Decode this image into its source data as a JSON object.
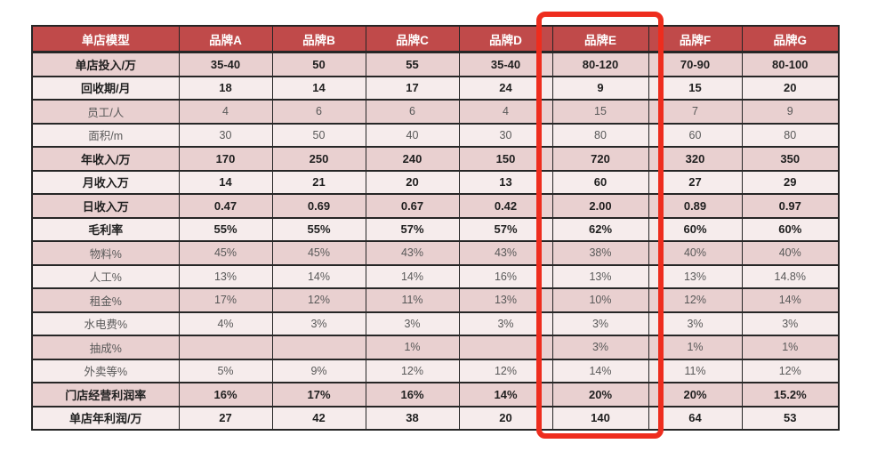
{
  "chart_data": {
    "type": "table",
    "title": "",
    "columns": [
      "单店模型",
      "品牌A",
      "品牌B",
      "品牌C",
      "品牌D",
      "品牌E",
      "品牌F",
      "品牌G"
    ],
    "rows": [
      {
        "label": "单店投入/万",
        "values": [
          "35-40",
          "50",
          "55",
          "35-40",
          "80-120",
          "70-90",
          "80-100"
        ],
        "strong": true
      },
      {
        "label": "回收期/月",
        "values": [
          "18",
          "14",
          "17",
          "24",
          "9",
          "15",
          "20"
        ],
        "strong": true
      },
      {
        "label": "员工/人",
        "values": [
          "4",
          "6",
          "6",
          "4",
          "15",
          "7",
          "9"
        ],
        "strong": false
      },
      {
        "label": "面积/m",
        "values": [
          "30",
          "50",
          "40",
          "30",
          "80",
          "60",
          "80"
        ],
        "strong": false
      },
      {
        "label": "年收入/万",
        "values": [
          "170",
          "250",
          "240",
          "150",
          "720",
          "320",
          "350"
        ],
        "strong": true
      },
      {
        "label": "月收入万",
        "values": [
          "14",
          "21",
          "20",
          "13",
          "60",
          "27",
          "29"
        ],
        "strong": true
      },
      {
        "label": "日收入万",
        "values": [
          "0.47",
          "0.69",
          "0.67",
          "0.42",
          "2.00",
          "0.89",
          "0.97"
        ],
        "strong": true
      },
      {
        "label": "毛利率",
        "values": [
          "55%",
          "55%",
          "57%",
          "57%",
          "62%",
          "60%",
          "60%"
        ],
        "strong": true
      },
      {
        "label": "物料%",
        "values": [
          "45%",
          "45%",
          "43%",
          "43%",
          "38%",
          "40%",
          "40%"
        ],
        "strong": false
      },
      {
        "label": "人工%",
        "values": [
          "13%",
          "14%",
          "14%",
          "16%",
          "13%",
          "13%",
          "14.8%"
        ],
        "strong": false
      },
      {
        "label": "租金%",
        "values": [
          "17%",
          "12%",
          "11%",
          "13%",
          "10%",
          "12%",
          "14%"
        ],
        "strong": false
      },
      {
        "label": "水电费%",
        "values": [
          "4%",
          "3%",
          "3%",
          "3%",
          "3%",
          "3%",
          "3%"
        ],
        "strong": false
      },
      {
        "label": "抽成%",
        "values": [
          "",
          "",
          "1%",
          "",
          "3%",
          "1%",
          "1%"
        ],
        "strong": false
      },
      {
        "label": "外卖等%",
        "values": [
          "5%",
          "9%",
          "12%",
          "12%",
          "14%",
          "11%",
          "12%"
        ],
        "strong": false
      },
      {
        "label": "门店经营利润率",
        "values": [
          "16%",
          "17%",
          "16%",
          "14%",
          "20%",
          "20%",
          "15.2%"
        ],
        "strong": true
      },
      {
        "label": "单店年利润/万",
        "values": [
          "27",
          "42",
          "38",
          "20",
          "140",
          "64",
          "53"
        ],
        "strong": true
      }
    ],
    "highlighted_column": "品牌E",
    "legend_position": "none",
    "grid": true
  },
  "colors": {
    "header_bg": "#C04A4A",
    "header_text": "#FFFFFF",
    "row_odd_bg": "#E9D0D0",
    "row_even_bg": "#F6ECEC",
    "border": "#262626",
    "text_strong": "#1F1F1F",
    "text_muted": "#595959",
    "highlight": "#EE2D1E",
    "page_bg": "#FFFFFF"
  }
}
